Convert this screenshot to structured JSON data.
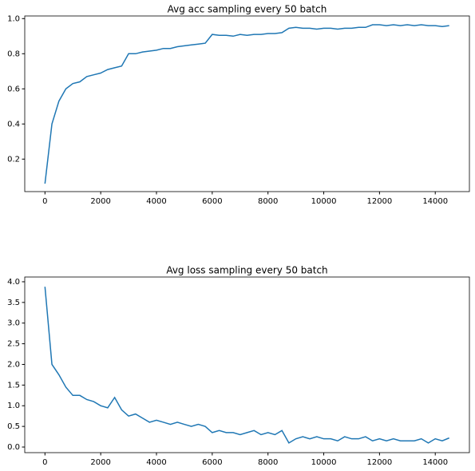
{
  "chart_data": [
    {
      "type": "line",
      "title": "Avg acc sampling every 50 batch",
      "color": "#1f77b4",
      "x": [
        0,
        250,
        500,
        750,
        1000,
        1250,
        1500,
        1750,
        2000,
        2250,
        2500,
        2750,
        3000,
        3250,
        3500,
        3750,
        4000,
        4250,
        4500,
        4750,
        5000,
        5250,
        5500,
        5750,
        6000,
        6250,
        6500,
        6750,
        7000,
        7250,
        7500,
        7750,
        8000,
        8250,
        8500,
        8750,
        9000,
        9250,
        9500,
        9750,
        10000,
        10250,
        10500,
        10750,
        11000,
        11250,
        11500,
        11750,
        12000,
        12250,
        12500,
        12750,
        13000,
        13250,
        13500,
        13750,
        14000,
        14250,
        14500
      ],
      "values": [
        0.06,
        0.4,
        0.53,
        0.6,
        0.63,
        0.64,
        0.67,
        0.68,
        0.69,
        0.71,
        0.72,
        0.73,
        0.8,
        0.8,
        0.81,
        0.815,
        0.82,
        0.83,
        0.83,
        0.84,
        0.845,
        0.85,
        0.855,
        0.86,
        0.91,
        0.905,
        0.905,
        0.9,
        0.91,
        0.905,
        0.91,
        0.91,
        0.915,
        0.915,
        0.92,
        0.945,
        0.95,
        0.945,
        0.945,
        0.94,
        0.945,
        0.945,
        0.94,
        0.945,
        0.945,
        0.95,
        0.95,
        0.965,
        0.965,
        0.96,
        0.965,
        0.96,
        0.965,
        0.96,
        0.965,
        0.96,
        0.96,
        0.955,
        0.96
      ],
      "xlim": [
        -725,
        15225
      ],
      "xticks": [
        0,
        2000,
        4000,
        6000,
        8000,
        10000,
        12000,
        14000
      ],
      "ylim": [
        0.015,
        1.015
      ],
      "yticks": [
        0.2,
        0.4,
        0.6,
        0.8,
        {
          "value": 1,
          "label": "1.0"
        }
      ]
    },
    {
      "type": "line",
      "title": "Avg loss sampling every 50 batch",
      "color": "#1f77b4",
      "x": [
        0,
        250,
        500,
        750,
        1000,
        1250,
        1500,
        1750,
        2000,
        2250,
        2500,
        2750,
        3000,
        3250,
        3500,
        3750,
        4000,
        4250,
        4500,
        4750,
        5000,
        5250,
        5500,
        5750,
        6000,
        6250,
        6500,
        6750,
        7000,
        7250,
        7500,
        7750,
        8000,
        8250,
        8500,
        8750,
        9000,
        9250,
        9500,
        9750,
        10000,
        10250,
        10500,
        10750,
        11000,
        11250,
        11500,
        11750,
        12000,
        12250,
        12500,
        12750,
        13000,
        13250,
        13500,
        13750,
        14000,
        14250,
        14500
      ],
      "values": [
        3.88,
        2.0,
        1.75,
        1.45,
        1.25,
        1.25,
        1.15,
        1.1,
        1.0,
        0.95,
        1.2,
        0.9,
        0.75,
        0.8,
        0.7,
        0.6,
        0.65,
        0.6,
        0.55,
        0.6,
        0.55,
        0.5,
        0.55,
        0.5,
        0.35,
        0.4,
        0.35,
        0.35,
        0.3,
        0.35,
        0.4,
        0.3,
        0.35,
        0.3,
        0.4,
        0.1,
        0.2,
        0.25,
        0.2,
        0.25,
        0.2,
        0.2,
        0.15,
        0.25,
        0.2,
        0.2,
        0.25,
        0.15,
        0.2,
        0.15,
        0.2,
        0.15,
        0.15,
        0.15,
        0.2,
        0.1,
        0.2,
        0.15,
        0.22
      ],
      "xlim": [
        -725,
        15225
      ],
      "xticks": [
        0,
        2000,
        4000,
        6000,
        8000,
        10000,
        12000,
        14000
      ],
      "ylim": [
        -0.135,
        4.115
      ],
      "yticks": [
        {
          "value": 0,
          "label": "0.0"
        },
        0.5,
        {
          "value": 1,
          "label": "1.0"
        },
        1.5,
        {
          "value": 2,
          "label": "2.0"
        },
        2.5,
        {
          "value": 3,
          "label": "3.0"
        },
        3.5,
        {
          "value": 4,
          "label": "4.0"
        }
      ]
    }
  ]
}
